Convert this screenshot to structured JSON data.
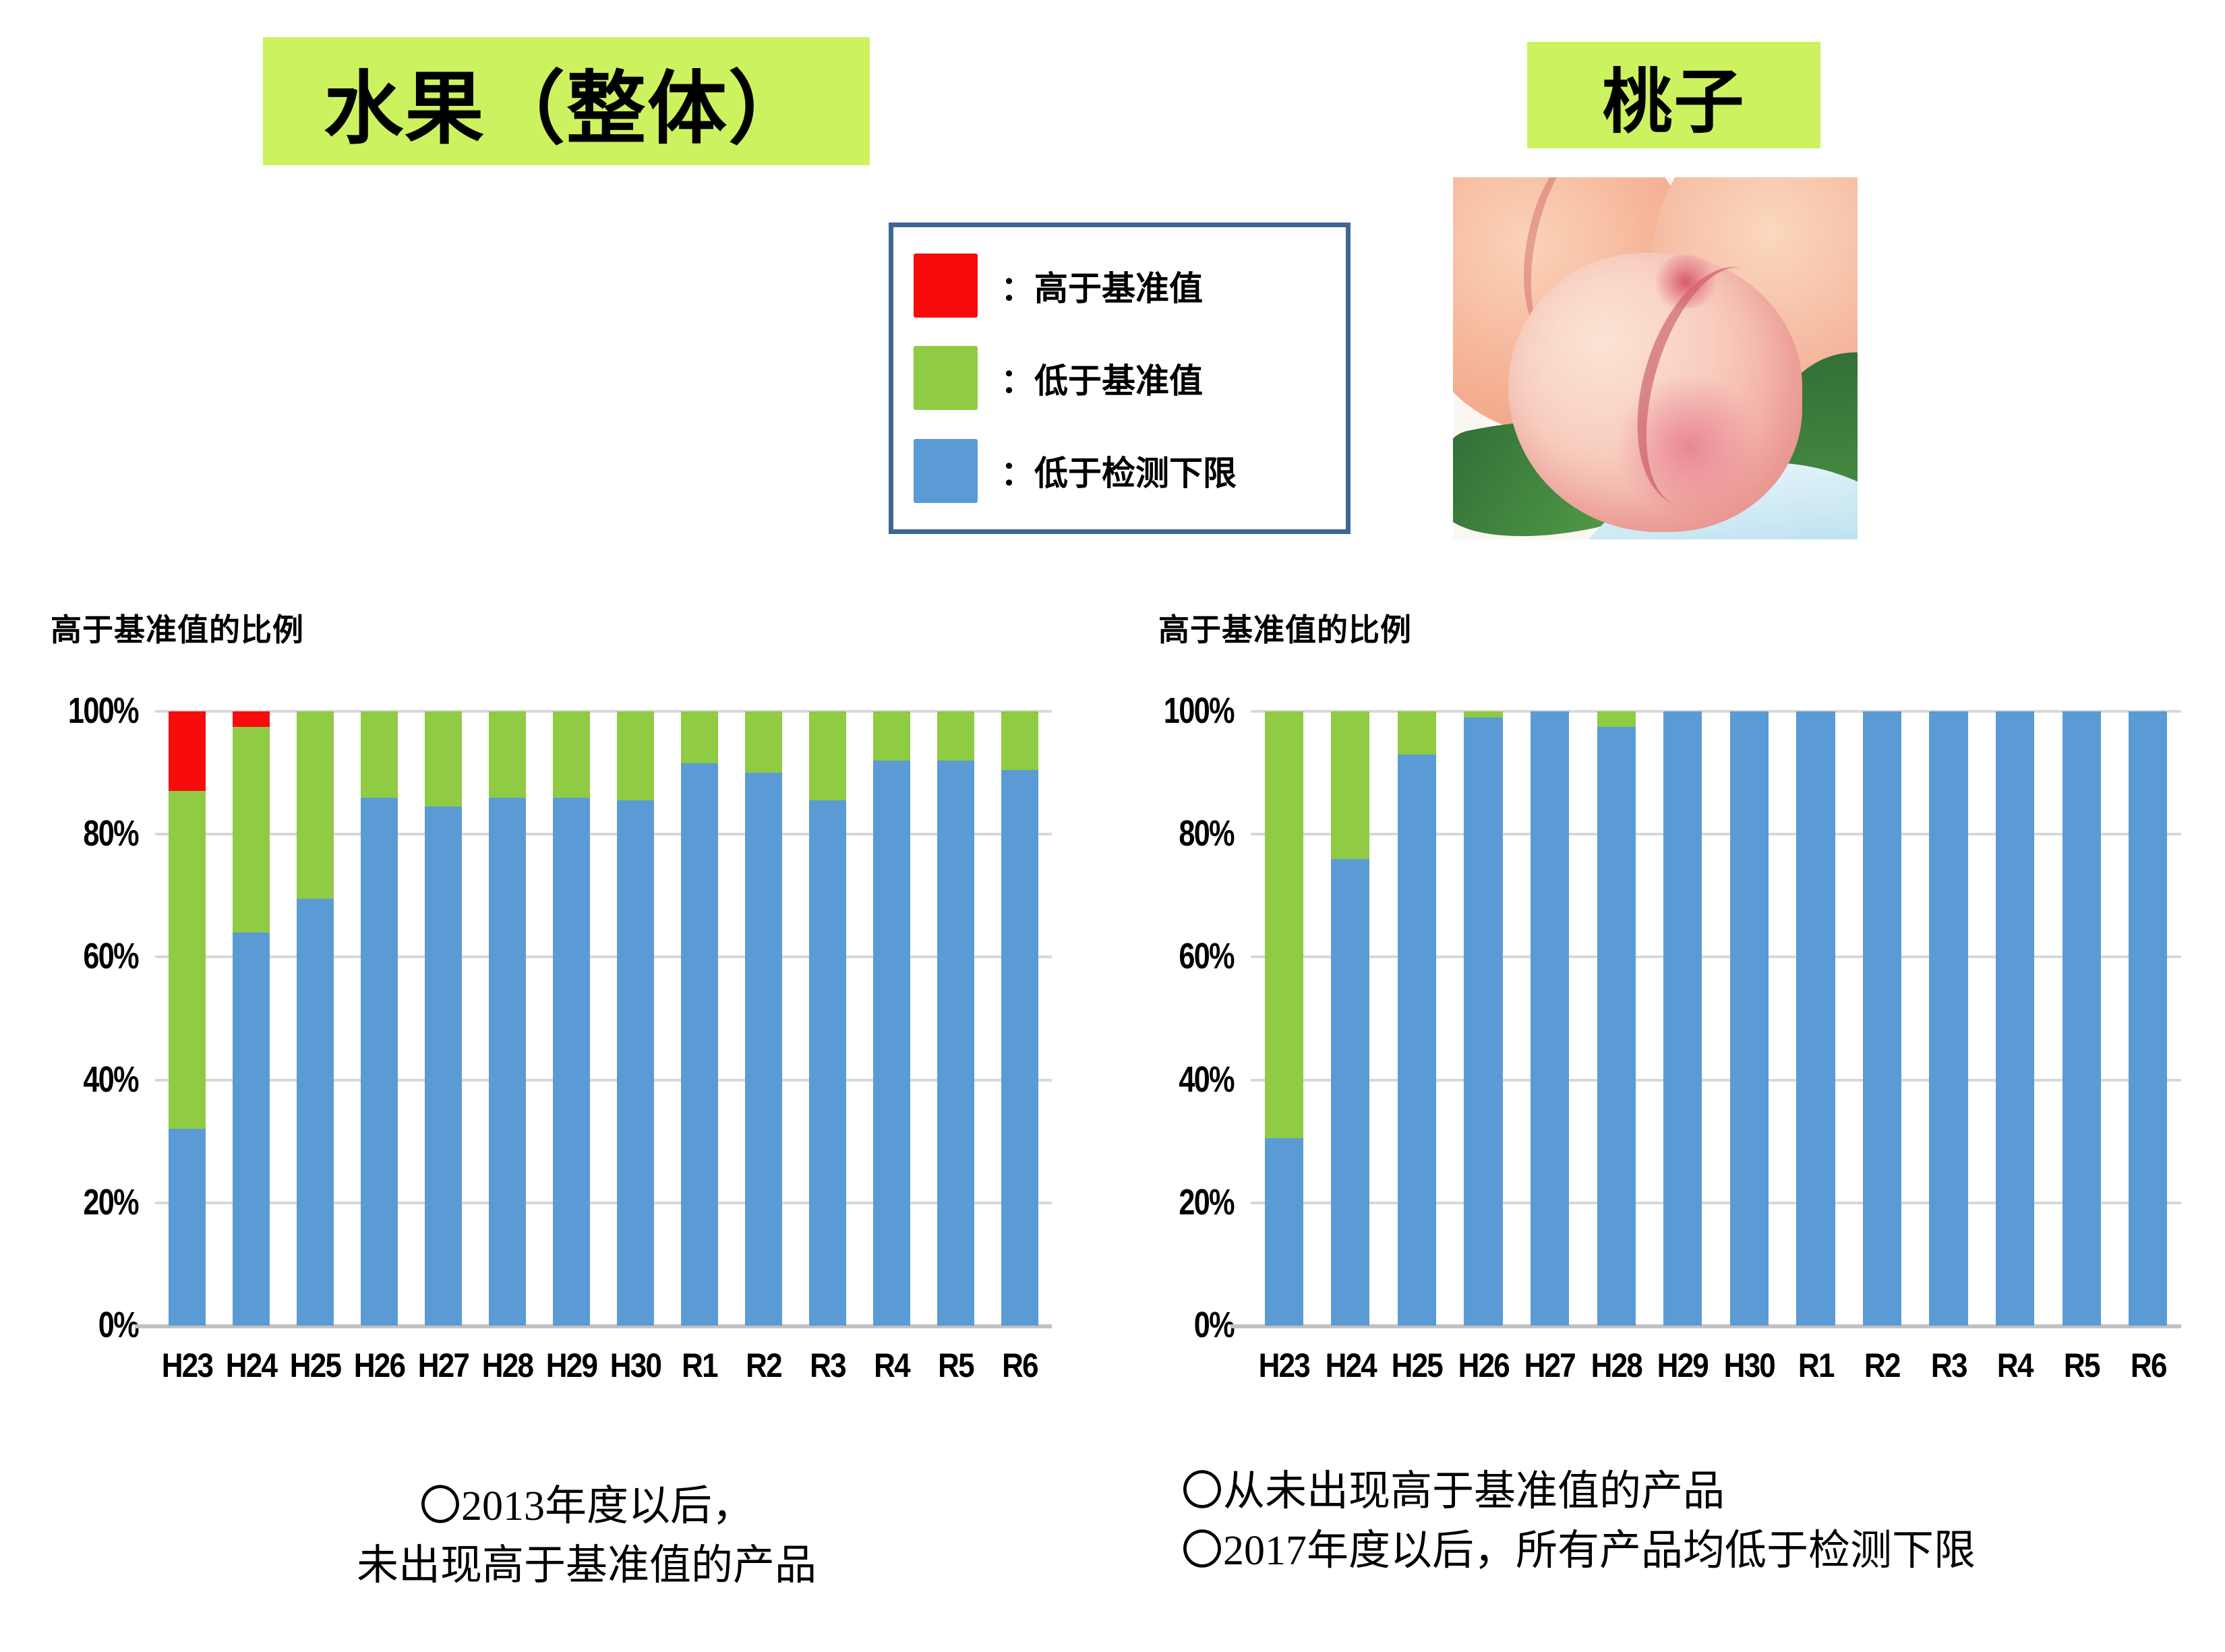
{
  "titles": {
    "left": "水果（整体）",
    "right": "桃子"
  },
  "legend": {
    "items": [
      {
        "name": "above-standard",
        "label": "：高于基准值",
        "color": "#F90B0B"
      },
      {
        "name": "below-standard",
        "label": "：低于基准值",
        "color": "#8FCB43"
      },
      {
        "name": "below-detection-limit",
        "label": "：低于检测下限",
        "color": "#5B9BD5"
      }
    ]
  },
  "notes": {
    "left": [
      "〇2013年度以后，",
      "未出现高于基准值的产品"
    ],
    "right": [
      "〇从未出现高于基准值的产品",
      "〇2017年度以后，所有产品均低于检测下限"
    ]
  },
  "colors": {
    "title_bg": "#CDF25F",
    "legend_border": "#3E6695",
    "gridline": "#D8D8D8",
    "axis_line": "#C2C2C2",
    "red": "#F90B0B",
    "green": "#8FCB43",
    "blue": "#5B9BD5"
  },
  "chart_data": [
    {
      "type": "bar",
      "stacked": true,
      "title": "水果（整体）",
      "axis_label": "高于基准值的比例",
      "categories": [
        "H23",
        "H24",
        "H25",
        "H26",
        "H27",
        "H28",
        "H29",
        "H30",
        "R1",
        "R2",
        "R3",
        "R4",
        "R5",
        "R6"
      ],
      "series": [
        {
          "name": "高于基准值",
          "color": "#F90B0B",
          "values": [
            13,
            2.5,
            0,
            0,
            0,
            0,
            0,
            0,
            0,
            0,
            0,
            0,
            0,
            0
          ]
        },
        {
          "name": "低于基准值",
          "color": "#8FCB43",
          "values": [
            55,
            33.5,
            30.5,
            14,
            15.5,
            14,
            14,
            14.5,
            8.5,
            10,
            14.5,
            8,
            8,
            9.5
          ]
        },
        {
          "name": "低于检测下限",
          "color": "#5B9BD5",
          "values": [
            32,
            64,
            69.5,
            86,
            84.5,
            86,
            86,
            85.5,
            91.5,
            90,
            85.5,
            92,
            92,
            90.5
          ]
        }
      ],
      "ylim": [
        0,
        100
      ],
      "y_ticks": [
        "100%",
        "80%",
        "60%",
        "40%",
        "20%",
        "0%"
      ],
      "grid": true,
      "legend_position": "top-center-shared-box"
    },
    {
      "type": "bar",
      "stacked": true,
      "title": "桃子",
      "axis_label": "高于基准值的比例",
      "categories": [
        "H23",
        "H24",
        "H25",
        "H26",
        "H27",
        "H28",
        "H29",
        "H30",
        "R1",
        "R2",
        "R3",
        "R4",
        "R5",
        "R6"
      ],
      "series": [
        {
          "name": "高于基准值",
          "color": "#F90B0B",
          "values": [
            0,
            0,
            0,
            0,
            0,
            0,
            0,
            0,
            0,
            0,
            0,
            0,
            0,
            0
          ]
        },
        {
          "name": "低于基准值",
          "color": "#8FCB43",
          "values": [
            69.5,
            24,
            7,
            1,
            0,
            2.5,
            0,
            0,
            0,
            0,
            0,
            0,
            0,
            0
          ]
        },
        {
          "name": "低于检测下限",
          "color": "#5B9BD5",
          "values": [
            30.5,
            76,
            93,
            99,
            100,
            97.5,
            100,
            100,
            100,
            100,
            100,
            100,
            100,
            100
          ]
        }
      ],
      "ylim": [
        0,
        100
      ],
      "y_ticks": [
        "100%",
        "80%",
        "60%",
        "40%",
        "20%",
        "0%"
      ],
      "grid": true,
      "legend_position": "top-center-shared-box"
    }
  ]
}
